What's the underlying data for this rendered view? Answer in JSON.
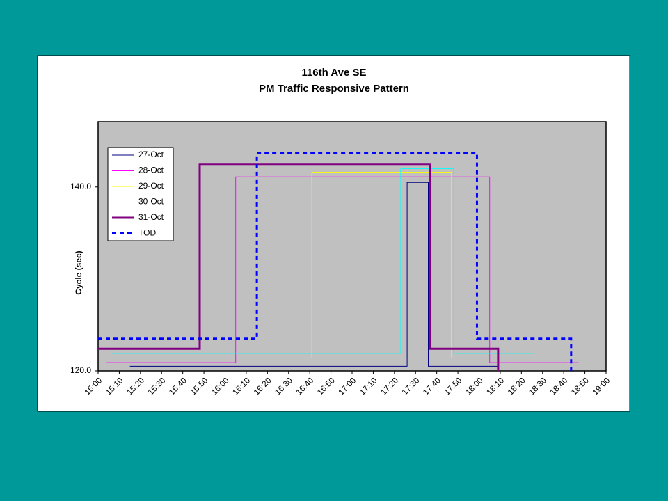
{
  "chart_data": {
    "type": "line",
    "title": "116th Ave SE",
    "subtitle": "PM Traffic Responsive Pattern",
    "y_label": "Cycle (sec)",
    "xlim": [
      900,
      1140
    ],
    "xticks": [
      {
        "value": 900,
        "label": "15:00"
      },
      {
        "value": 910,
        "label": "15:10"
      },
      {
        "value": 920,
        "label": "15:20"
      },
      {
        "value": 930,
        "label": "15:30"
      },
      {
        "value": 940,
        "label": "15:40"
      },
      {
        "value": 950,
        "label": "15:50"
      },
      {
        "value": 960,
        "label": "16:00"
      },
      {
        "value": 970,
        "label": "16:10"
      },
      {
        "value": 980,
        "label": "16:20"
      },
      {
        "value": 990,
        "label": "16:30"
      },
      {
        "value": 1000,
        "label": "16:40"
      },
      {
        "value": 1010,
        "label": "16:50"
      },
      {
        "value": 1020,
        "label": "17:00"
      },
      {
        "value": 1030,
        "label": "17:10"
      },
      {
        "value": 1040,
        "label": "17:20"
      },
      {
        "value": 1050,
        "label": "17:30"
      },
      {
        "value": 1060,
        "label": "17:40"
      },
      {
        "value": 1070,
        "label": "17:50"
      },
      {
        "value": 1080,
        "label": "18:00"
      },
      {
        "value": 1090,
        "label": "18:10"
      },
      {
        "value": 1100,
        "label": "18:20"
      },
      {
        "value": 1110,
        "label": "18:30"
      },
      {
        "value": 1120,
        "label": "18:40"
      },
      {
        "value": 1130,
        "label": "18:50"
      },
      {
        "value": 1140,
        "label": "19:00"
      }
    ],
    "ylim": [
      120,
      147.1
    ],
    "yticks": [
      {
        "value": 120,
        "label": "120.0"
      },
      {
        "value": 140,
        "label": "140.0"
      }
    ],
    "legend": "upper left",
    "plot_background": "#c0c0c0",
    "series": [
      {
        "name": "27-Oct",
        "color": "#000080",
        "line_width": 1,
        "dashed": false,
        "x": [
          915,
          1046,
          1046,
          1056,
          1056,
          1089
        ],
        "values": [
          120.5,
          120.5,
          140.5,
          140.5,
          120.5,
          120.5
        ]
      },
      {
        "name": "28-Oct",
        "color": "#ff00ff",
        "line_width": 1,
        "dashed": false,
        "x": [
          904,
          965,
          965,
          1085,
          1085,
          1127
        ],
        "values": [
          120.9,
          120.9,
          141.1,
          141.1,
          120.9,
          120.9
        ]
      },
      {
        "name": "29-Oct",
        "color": "#ffff00",
        "line_width": 1,
        "dashed": false,
        "x": [
          900,
          1001,
          1001,
          1067,
          1067,
          1095
        ],
        "values": [
          121.4,
          121.4,
          141.6,
          141.6,
          121.4,
          121.4
        ]
      },
      {
        "name": "30-Oct",
        "color": "#00ffff",
        "line_width": 1,
        "dashed": false,
        "x": [
          906.5,
          1043,
          1043,
          1068,
          1068,
          1106
        ],
        "values": [
          121.9,
          121.9,
          142.0,
          142.0,
          121.9,
          121.9
        ]
      },
      {
        "name": "31-Oct",
        "color": "#800080",
        "line_width": 3,
        "dashed": false,
        "x": [
          900,
          948,
          948,
          1057,
          1057,
          1089,
          1089
        ],
        "values": [
          122.4,
          122.4,
          142.5,
          142.5,
          122.4,
          122.4,
          120
        ]
      },
      {
        "name": "TOD",
        "color": "#0000ff",
        "line_width": 3,
        "dashed": true,
        "x": [
          900,
          975,
          975,
          1079,
          1079,
          1123.5,
          1123.5
        ],
        "values": [
          123.5,
          123.5,
          143.7,
          143.7,
          123.5,
          123.5,
          120
        ]
      }
    ]
  }
}
